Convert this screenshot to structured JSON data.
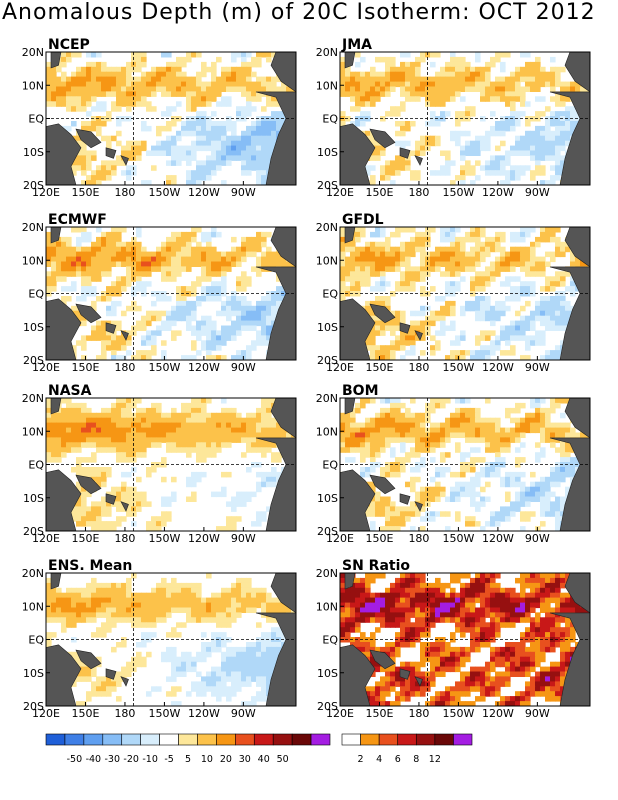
{
  "title": "Anomalous Depth (m) of 20C Isotherm: OCT 2012",
  "panels": [
    "NCEP",
    "JMA",
    "ECMWF",
    "GFDL",
    "NASA",
    "BOM",
    "ENS. Mean",
    "SN Ratio"
  ],
  "axes": {
    "lon_ticks": [
      "120E",
      "150E",
      "180",
      "150W",
      "120W",
      "90W"
    ],
    "lat_ticks": [
      "20N",
      "10N",
      "EQ",
      "10S",
      "20S"
    ]
  },
  "colors": {
    "land": "#555555",
    "anomaly_scale": [
      "#1f5fd8",
      "#3f7fe6",
      "#5f9ff0",
      "#86bdf6",
      "#b0d8f8",
      "#d8eefc",
      "#ffffff",
      "#fde79a",
      "#fcc24a",
      "#f69614",
      "#e8501e",
      "#c81818",
      "#961010",
      "#6a0808",
      "#a41de2"
    ],
    "sn_scale": [
      "#ffffff",
      "#f69614",
      "#e8501e",
      "#c81818",
      "#961010",
      "#6a0808",
      "#a41de2"
    ]
  },
  "colorbar_anomaly": {
    "labels": [
      "-50",
      "-40",
      "-30",
      "-20",
      "-10",
      "-5",
      "5",
      "10",
      "20",
      "30",
      "40",
      "50"
    ]
  },
  "colorbar_sn": {
    "labels": [
      "2",
      "4",
      "6",
      "8",
      "12"
    ]
  },
  "chart_data": [
    {
      "type": "heatmap",
      "title": "NCEP",
      "x": [
        "120E",
        "150E",
        "180",
        "150W",
        "120W",
        "90W"
      ],
      "y": [
        "20N",
        "10N",
        "EQ",
        "10S",
        "20S"
      ],
      "pattern": {
        "north_band": 22,
        "south_west": 15,
        "east_south": -25,
        "offset": 0,
        "noise": 8
      }
    },
    {
      "type": "heatmap",
      "title": "JMA",
      "x": [
        "120E",
        "150E",
        "180",
        "150W",
        "120W",
        "90W"
      ],
      "y": [
        "20N",
        "10N",
        "EQ",
        "10S",
        "20S"
      ],
      "pattern": {
        "north_band": 20,
        "south_west": 12,
        "east_south": -15,
        "offset": 0,
        "noise": 8
      }
    },
    {
      "type": "heatmap",
      "title": "ECMWF",
      "x": [
        "120E",
        "150E",
        "180",
        "150W",
        "120W",
        "90W"
      ],
      "y": [
        "20N",
        "10N",
        "EQ",
        "10S",
        "20S"
      ],
      "pattern": {
        "north_band": 24,
        "south_west": 14,
        "east_south": -18,
        "offset": 0,
        "noise": 9
      }
    },
    {
      "type": "heatmap",
      "title": "GFDL",
      "x": [
        "120E",
        "150E",
        "180",
        "150W",
        "120W",
        "90W"
      ],
      "y": [
        "20N",
        "10N",
        "EQ",
        "10S",
        "20S"
      ],
      "pattern": {
        "north_band": 20,
        "south_west": 22,
        "east_south": -14,
        "offset": 0,
        "noise": 9
      }
    },
    {
      "type": "heatmap",
      "title": "NASA",
      "x": [
        "120E",
        "150E",
        "180",
        "150W",
        "120W",
        "90W"
      ],
      "y": [
        "20N",
        "10N",
        "EQ",
        "10S",
        "20S"
      ],
      "pattern": {
        "north_band": 26,
        "south_west": 12,
        "east_south": -8,
        "offset": 2,
        "noise": 5
      }
    },
    {
      "type": "heatmap",
      "title": "BOM",
      "x": [
        "120E",
        "150E",
        "180",
        "150W",
        "120W",
        "90W"
      ],
      "y": [
        "20N",
        "10N",
        "EQ",
        "10S",
        "20S"
      ],
      "pattern": {
        "north_band": 22,
        "south_west": 15,
        "east_south": -12,
        "offset": 0,
        "noise": 9
      }
    },
    {
      "type": "heatmap",
      "title": "ENS. Mean",
      "x": [
        "120E",
        "150E",
        "180",
        "150W",
        "120W",
        "90W"
      ],
      "y": [
        "20N",
        "10N",
        "EQ",
        "10S",
        "20S"
      ],
      "pattern": {
        "north_band": 22,
        "south_west": 12,
        "east_south": -18,
        "offset": 0,
        "noise": 5
      }
    },
    {
      "type": "heatmap",
      "title": "SN Ratio",
      "x": [
        "120E",
        "150E",
        "180",
        "150W",
        "120W",
        "90W"
      ],
      "y": [
        "20N",
        "10N",
        "EQ",
        "10S",
        "20S"
      ],
      "pattern": {
        "north_band": 8,
        "south_west": 5,
        "east_south": 4,
        "offset": 2.5,
        "noise": 4
      }
    }
  ]
}
